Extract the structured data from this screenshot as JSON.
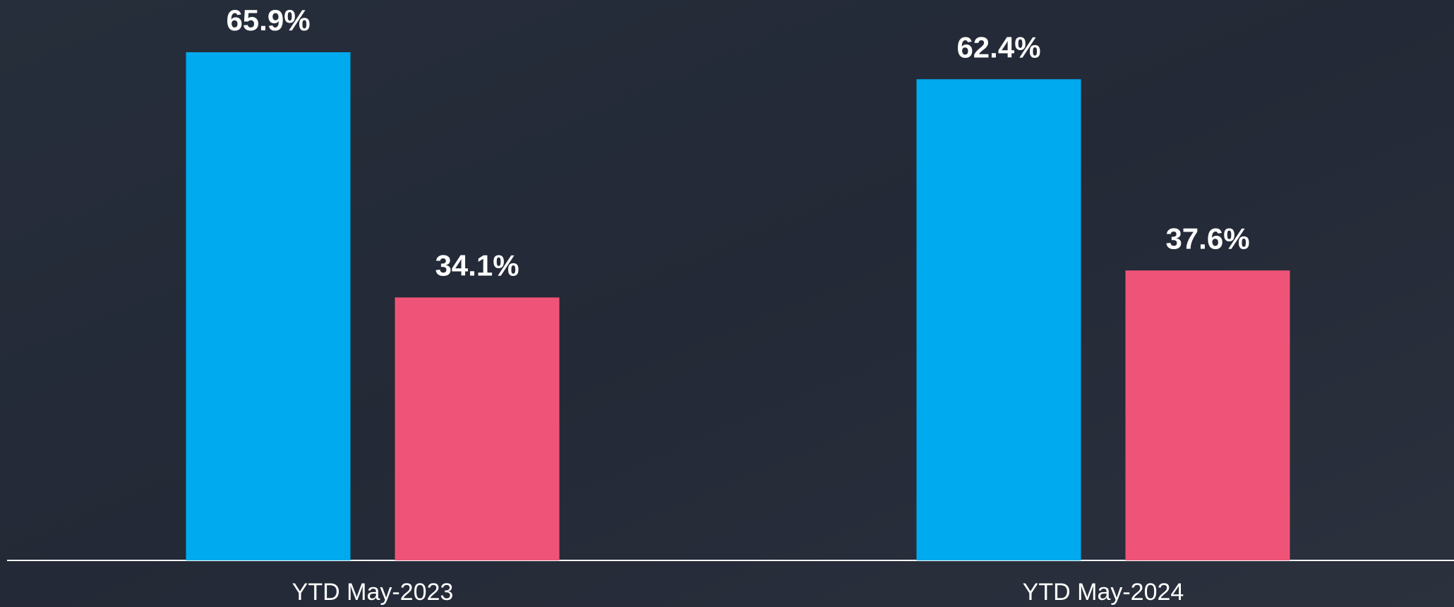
{
  "chart_data": {
    "type": "bar",
    "categories": [
      "YTD May-2023",
      "YTD May-2024"
    ],
    "series": [
      {
        "color": "#00aaee",
        "values": [
          65.9,
          62.4
        ],
        "value_labels": [
          "65.9%",
          "62.4%"
        ]
      },
      {
        "color": "#ef5478",
        "values": [
          34.1,
          37.6
        ],
        "value_labels": [
          "34.1%",
          "37.6%"
        ]
      }
    ]
  }
}
